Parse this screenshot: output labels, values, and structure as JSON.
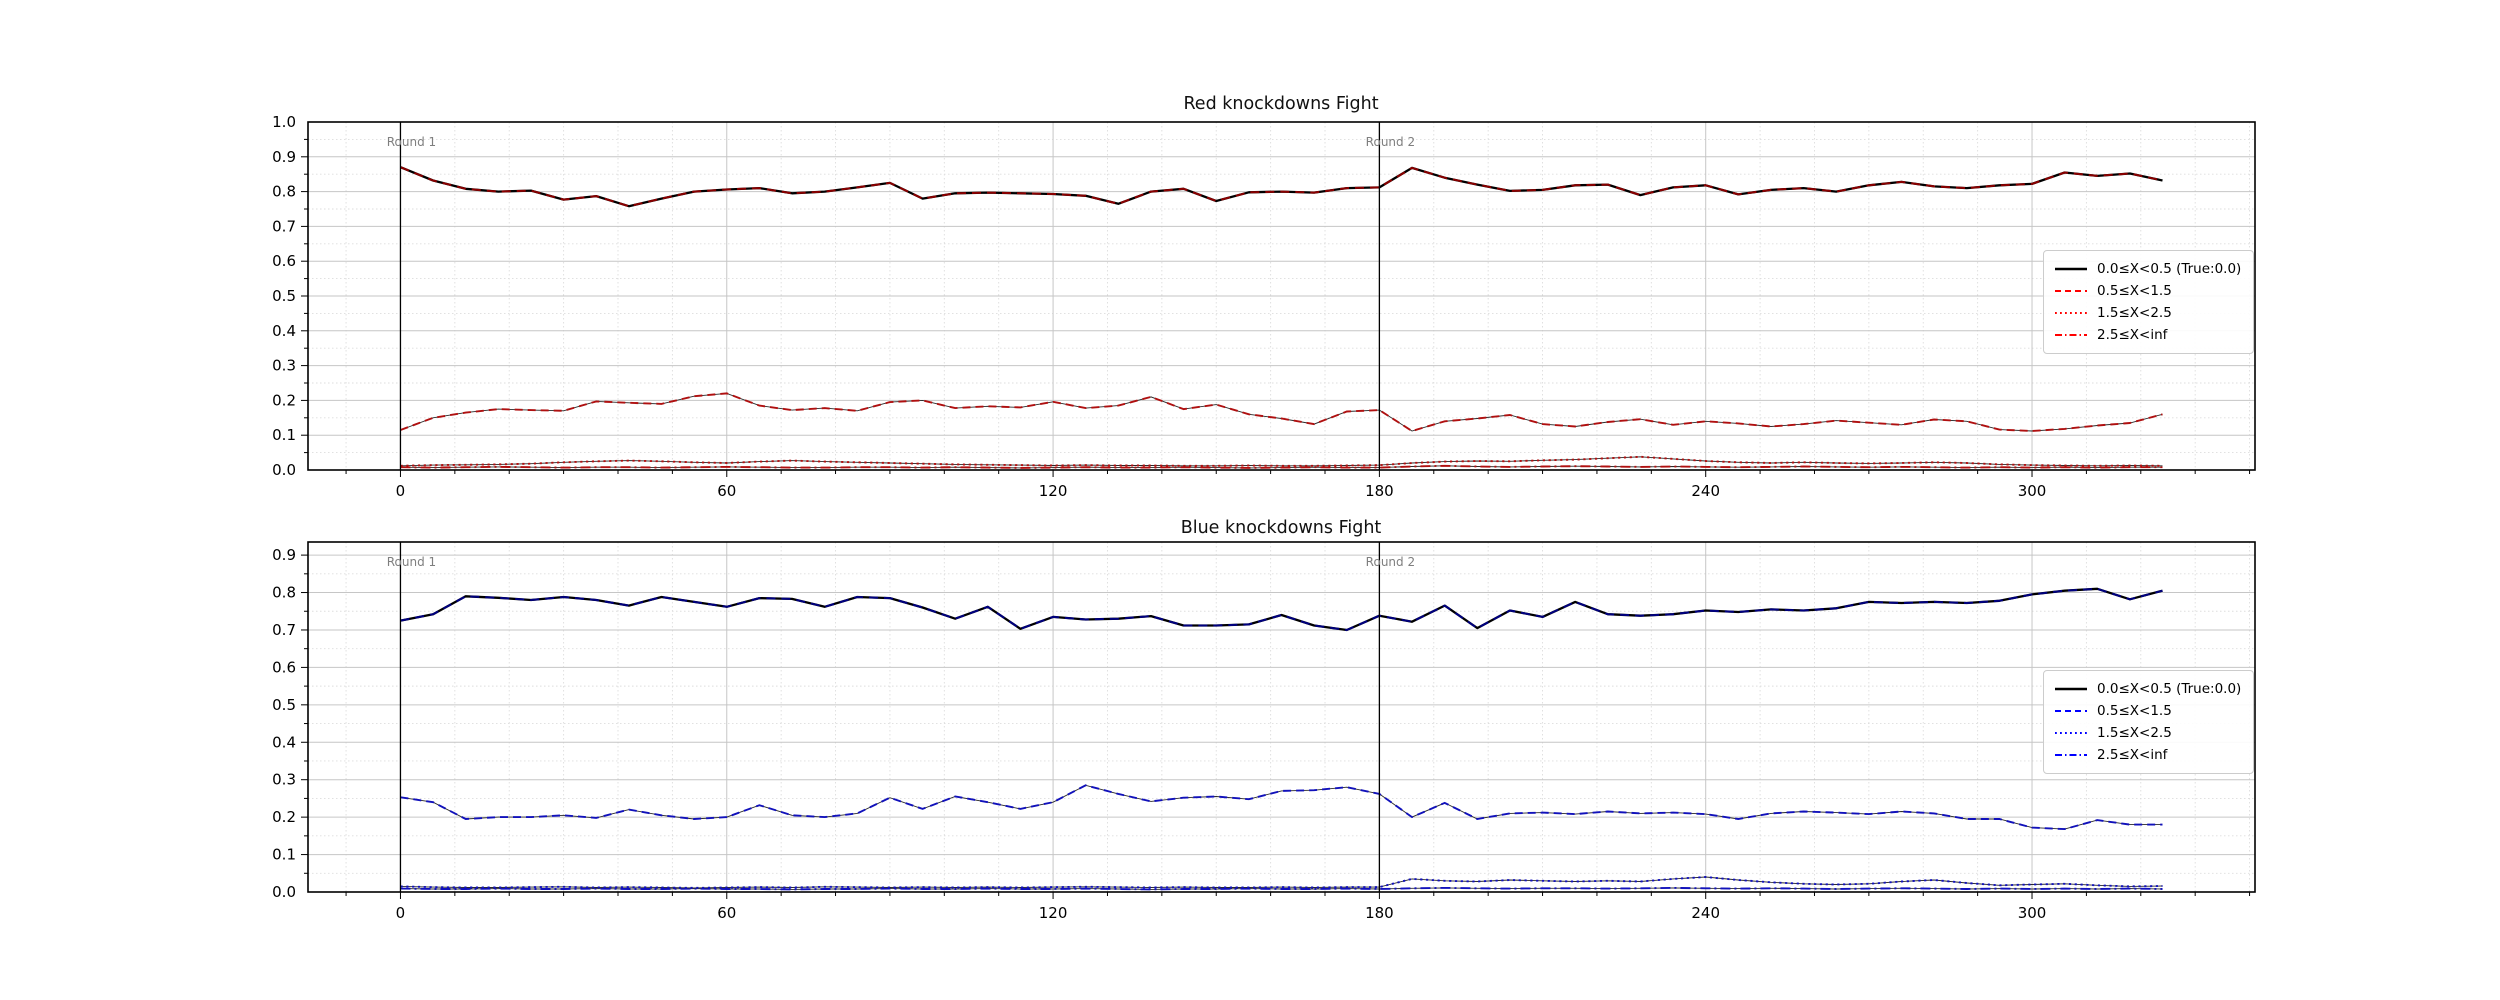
{
  "figure": {
    "background": "#ffffff"
  },
  "chart_data": [
    {
      "type": "line",
      "title": "Red knockdowns Fight",
      "xlabel": "",
      "ylabel": "",
      "xlim": [
        -17,
        341
      ],
      "ylim": [
        0,
        1.0
      ],
      "xticks": [
        0,
        60,
        120,
        180,
        240,
        300
      ],
      "ytick_step": 0.1,
      "grid": "major-solid-minor-dashed",
      "legend_position": "right",
      "x_start": 0,
      "x_step": 6,
      "round_markers": [
        {
          "x": 0,
          "label": "Round 1"
        },
        {
          "x": 180,
          "label": "Round 2"
        }
      ],
      "colors": {
        "line": "#b01010",
        "overlay": "#8b0000",
        "legend": "#ff0000",
        "base": "#000000",
        "annotation": "#7f7f7f"
      },
      "series": [
        {
          "name": "0.0≤X<0.5 (True:0.0)",
          "style": "solid",
          "values": [
            0.87,
            0.832,
            0.808,
            0.8,
            0.803,
            0.777,
            0.787,
            0.758,
            0.78,
            0.8,
            0.806,
            0.81,
            0.795,
            0.8,
            0.812,
            0.825,
            0.78,
            0.795,
            0.797,
            0.795,
            0.793,
            0.788,
            0.765,
            0.8,
            0.808,
            0.773,
            0.798,
            0.8,
            0.797,
            0.81,
            0.812,
            0.868,
            0.84,
            0.82,
            0.802,
            0.805,
            0.818,
            0.82,
            0.79,
            0.812,
            0.818,
            0.792,
            0.805,
            0.81,
            0.8,
            0.818,
            0.828,
            0.815,
            0.81,
            0.818,
            0.822,
            0.855,
            0.845,
            0.852,
            0.832
          ]
        },
        {
          "name": "0.5≤X<1.5",
          "style": "dashed",
          "values": [
            0.115,
            0.15,
            0.165,
            0.175,
            0.172,
            0.17,
            0.197,
            0.193,
            0.19,
            0.212,
            0.22,
            0.185,
            0.172,
            0.178,
            0.17,
            0.195,
            0.2,
            0.178,
            0.183,
            0.18,
            0.196,
            0.178,
            0.185,
            0.21,
            0.175,
            0.188,
            0.16,
            0.148,
            0.132,
            0.168,
            0.172,
            0.112,
            0.14,
            0.148,
            0.158,
            0.132,
            0.125,
            0.138,
            0.146,
            0.13,
            0.14,
            0.134,
            0.125,
            0.132,
            0.142,
            0.136,
            0.13,
            0.145,
            0.14,
            0.116,
            0.112,
            0.118,
            0.128,
            0.135,
            0.16
          ]
        },
        {
          "name": "1.5≤X<2.5",
          "style": "dotted",
          "values": [
            0.012,
            0.014,
            0.015,
            0.016,
            0.018,
            0.022,
            0.025,
            0.027,
            0.025,
            0.022,
            0.02,
            0.024,
            0.027,
            0.024,
            0.022,
            0.02,
            0.018,
            0.016,
            0.015,
            0.014,
            0.013,
            0.014,
            0.013,
            0.013,
            0.012,
            0.012,
            0.013,
            0.012,
            0.012,
            0.013,
            0.014,
            0.02,
            0.024,
            0.026,
            0.025,
            0.028,
            0.03,
            0.034,
            0.038,
            0.032,
            0.026,
            0.022,
            0.02,
            0.022,
            0.02,
            0.019,
            0.02,
            0.022,
            0.02,
            0.016,
            0.014,
            0.013,
            0.012,
            0.013,
            0.012
          ]
        },
        {
          "name": "2.5≤X<inf",
          "style": "dashdot",
          "values": [
            0.008,
            0.007,
            0.008,
            0.009,
            0.008,
            0.007,
            0.008,
            0.008,
            0.007,
            0.008,
            0.009,
            0.008,
            0.007,
            0.007,
            0.008,
            0.008,
            0.007,
            0.008,
            0.007,
            0.006,
            0.007,
            0.008,
            0.007,
            0.007,
            0.008,
            0.007,
            0.006,
            0.007,
            0.008,
            0.007,
            0.007,
            0.01,
            0.012,
            0.01,
            0.009,
            0.01,
            0.011,
            0.01,
            0.009,
            0.01,
            0.009,
            0.008,
            0.009,
            0.01,
            0.009,
            0.008,
            0.009,
            0.008,
            0.007,
            0.008,
            0.007,
            0.008,
            0.007,
            0.008,
            0.008
          ]
        }
      ]
    },
    {
      "type": "line",
      "title": "Blue knockdowns Fight",
      "xlabel": "",
      "ylabel": "",
      "xlim": [
        -17,
        341
      ],
      "ylim": [
        0,
        0.935
      ],
      "xticks": [
        0,
        60,
        120,
        180,
        240,
        300
      ],
      "ytick_step": 0.1,
      "grid": "major-solid-minor-dashed",
      "legend_position": "right",
      "x_start": 0,
      "x_step": 6,
      "round_markers": [
        {
          "x": 0,
          "label": "Round 1"
        },
        {
          "x": 180,
          "label": "Round 2"
        }
      ],
      "colors": {
        "line": "#1111bb",
        "overlay": "#000080",
        "legend": "#0000ff",
        "base": "#000000",
        "annotation": "#7f7f7f"
      },
      "series": [
        {
          "name": "0.0≤X<0.5 (True:0.0)",
          "style": "solid",
          "values": [
            0.725,
            0.742,
            0.79,
            0.786,
            0.78,
            0.788,
            0.78,
            0.765,
            0.788,
            0.775,
            0.762,
            0.785,
            0.783,
            0.762,
            0.788,
            0.785,
            0.76,
            0.73,
            0.762,
            0.703,
            0.735,
            0.728,
            0.73,
            0.737,
            0.712,
            0.712,
            0.715,
            0.74,
            0.712,
            0.7,
            0.738,
            0.722,
            0.765,
            0.705,
            0.752,
            0.735,
            0.775,
            0.742,
            0.738,
            0.742,
            0.752,
            0.748,
            0.755,
            0.752,
            0.758,
            0.775,
            0.772,
            0.775,
            0.772,
            0.778,
            0.795,
            0.805,
            0.81,
            0.782,
            0.805
          ]
        },
        {
          "name": "0.5≤X<1.5",
          "style": "dashed",
          "values": [
            0.253,
            0.24,
            0.195,
            0.2,
            0.2,
            0.205,
            0.198,
            0.22,
            0.205,
            0.195,
            0.2,
            0.232,
            0.205,
            0.2,
            0.21,
            0.252,
            0.222,
            0.255,
            0.24,
            0.222,
            0.24,
            0.285,
            0.262,
            0.242,
            0.252,
            0.255,
            0.248,
            0.27,
            0.272,
            0.28,
            0.262,
            0.2,
            0.238,
            0.195,
            0.21,
            0.212,
            0.208,
            0.215,
            0.21,
            0.212,
            0.208,
            0.195,
            0.21,
            0.215,
            0.212,
            0.208,
            0.215,
            0.21,
            0.195,
            0.195,
            0.172,
            0.168,
            0.192,
            0.18,
            0.18
          ]
        },
        {
          "name": "1.5≤X<2.5",
          "style": "dotted",
          "values": [
            0.015,
            0.013,
            0.012,
            0.012,
            0.013,
            0.014,
            0.012,
            0.013,
            0.012,
            0.011,
            0.012,
            0.013,
            0.012,
            0.014,
            0.013,
            0.012,
            0.013,
            0.012,
            0.013,
            0.012,
            0.013,
            0.014,
            0.013,
            0.012,
            0.013,
            0.012,
            0.012,
            0.013,
            0.012,
            0.013,
            0.013,
            0.035,
            0.03,
            0.028,
            0.032,
            0.03,
            0.028,
            0.03,
            0.028,
            0.035,
            0.04,
            0.032,
            0.026,
            0.022,
            0.02,
            0.022,
            0.028,
            0.032,
            0.024,
            0.018,
            0.02,
            0.022,
            0.018,
            0.015,
            0.016
          ]
        },
        {
          "name": "2.5≤X<inf",
          "style": "dashdot",
          "values": [
            0.009,
            0.008,
            0.008,
            0.009,
            0.008,
            0.008,
            0.009,
            0.008,
            0.008,
            0.009,
            0.008,
            0.008,
            0.007,
            0.008,
            0.008,
            0.009,
            0.008,
            0.008,
            0.009,
            0.008,
            0.008,
            0.009,
            0.008,
            0.007,
            0.008,
            0.008,
            0.009,
            0.008,
            0.008,
            0.009,
            0.008,
            0.01,
            0.011,
            0.01,
            0.009,
            0.01,
            0.01,
            0.009,
            0.01,
            0.011,
            0.01,
            0.009,
            0.01,
            0.009,
            0.008,
            0.009,
            0.01,
            0.009,
            0.008,
            0.009,
            0.008,
            0.009,
            0.008,
            0.009,
            0.008
          ]
        }
      ]
    }
  ]
}
